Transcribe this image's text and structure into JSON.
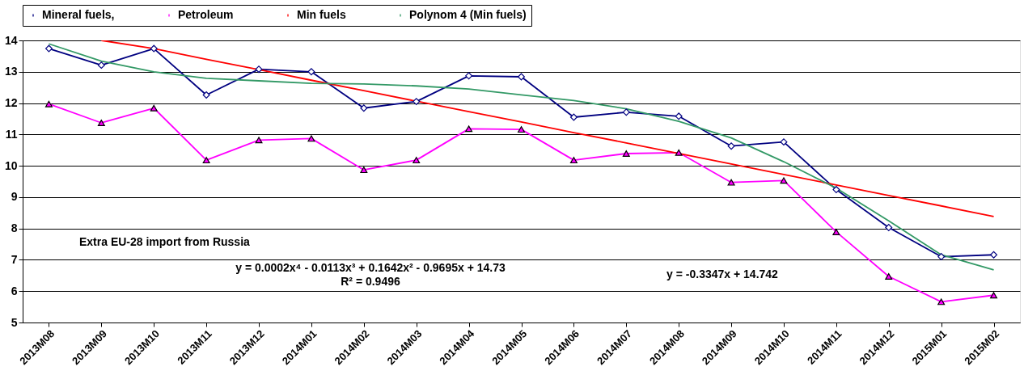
{
  "chart_data": {
    "type": "line",
    "categories": [
      "2013M08",
      "2013M09",
      "2013M10",
      "2013M11",
      "2013M12",
      "2014M01",
      "2014M02",
      "2014M03",
      "2014M04",
      "2014M05",
      "2014M06",
      "2014M07",
      "2014M08",
      "2014M09",
      "2014M10",
      "2014M11",
      "2014M12",
      "2015M01",
      "2015M02"
    ],
    "series": [
      {
        "name": "Mineral fuels,",
        "color": "#000080",
        "marker": "diamond",
        "values": [
          13.74,
          13.21,
          13.74,
          12.26,
          13.08,
          13.0,
          11.84,
          12.05,
          12.87,
          12.84,
          11.55,
          11.71,
          11.58,
          10.63,
          10.76,
          9.24,
          8.03,
          7.1,
          7.16
        ]
      },
      {
        "name": "Petroleum",
        "color": "#ff00ff",
        "marker": "triangle",
        "values": [
          11.97,
          11.37,
          11.84,
          10.18,
          10.82,
          10.87,
          9.87,
          10.18,
          11.18,
          11.16,
          10.18,
          10.39,
          10.42,
          9.47,
          9.53,
          7.89,
          6.47,
          5.66,
          5.87
        ]
      },
      {
        "name": "Min fuels",
        "color": "#ff0000",
        "marker": "none",
        "values": [
          null,
          14.0,
          13.74,
          13.4,
          13.07,
          12.73,
          12.4,
          12.06,
          11.73,
          11.4,
          11.06,
          10.73,
          10.39,
          10.06,
          9.72,
          9.39,
          9.05,
          8.72,
          8.38
        ]
      },
      {
        "name": "Polynom 4 (Min fuels)",
        "color": "#339966",
        "marker": "none",
        "values": [
          13.89,
          13.34,
          13.0,
          12.79,
          12.71,
          12.63,
          12.61,
          12.55,
          12.45,
          12.26,
          12.08,
          11.82,
          11.42,
          10.89,
          10.13,
          9.29,
          8.24,
          7.16,
          6.68
        ]
      }
    ],
    "ylim": [
      5,
      14
    ],
    "yticks": [
      5,
      6,
      7,
      8,
      9,
      10,
      11,
      12,
      13,
      14
    ],
    "grid": "y",
    "legend": "top",
    "annotations": [
      "Extra EU-28 import from Russia",
      "y = 0.0002x⁴ - 0.0113x³ + 0.1642x² - 0.9695x + 14.73",
      "R² = 0.9496",
      "y = -0.3347x + 14.742"
    ]
  }
}
